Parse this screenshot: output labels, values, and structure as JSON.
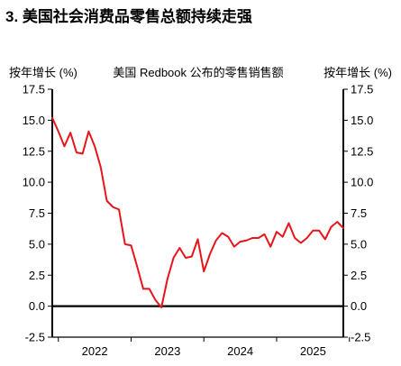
{
  "figure": {
    "title": "3. 美国社会消费品零售总额持续走强"
  },
  "chart_data": {
    "type": "line",
    "title": "美国 Redbook 公布的零售销售额",
    "ylabel_left": "按年增长 (%)",
    "ylabel_right": "按年增长 (%)",
    "ylim": [
      -2.5,
      17.5
    ],
    "yticks": [
      "17.5",
      "15.0",
      "12.5",
      "10.0",
      "7.5",
      "5.0",
      "2.5",
      "0.0",
      "-2.5"
    ],
    "xlim": [
      "2021-12",
      "2025-12"
    ],
    "xtick_labels": [
      "2022",
      "2023",
      "2024",
      "2025"
    ],
    "grid": false,
    "series": [
      {
        "color": "#e8141b",
        "points": [
          [
            "2021-12",
            15.2
          ],
          [
            "2022-01",
            14.1
          ],
          [
            "2022-02",
            12.9
          ],
          [
            "2022-03",
            14.0
          ],
          [
            "2022-04",
            12.4
          ],
          [
            "2022-05",
            12.3
          ],
          [
            "2022-06",
            14.1
          ],
          [
            "2022-07",
            12.9
          ],
          [
            "2022-08",
            11.2
          ],
          [
            "2022-09",
            8.5
          ],
          [
            "2022-10",
            8.0
          ],
          [
            "2022-11",
            7.8
          ],
          [
            "2022-12",
            5.0
          ],
          [
            "2023-01",
            4.9
          ],
          [
            "2023-02",
            3.2
          ],
          [
            "2023-03",
            1.4
          ],
          [
            "2023-04",
            1.4
          ],
          [
            "2023-05",
            0.5
          ],
          [
            "2023-06",
            -0.1
          ],
          [
            "2023-07",
            2.2
          ],
          [
            "2023-08",
            3.9
          ],
          [
            "2023-09",
            4.7
          ],
          [
            "2023-10",
            3.9
          ],
          [
            "2023-11",
            4.0
          ],
          [
            "2023-12",
            5.4
          ],
          [
            "2024-01",
            2.8
          ],
          [
            "2024-02",
            4.2
          ],
          [
            "2024-03",
            5.3
          ],
          [
            "2024-04",
            5.9
          ],
          [
            "2024-05",
            5.6
          ],
          [
            "2024-06",
            4.8
          ],
          [
            "2024-07",
            5.2
          ],
          [
            "2024-08",
            5.3
          ],
          [
            "2024-09",
            5.5
          ],
          [
            "2024-10",
            5.5
          ],
          [
            "2024-11",
            5.8
          ],
          [
            "2024-12",
            4.8
          ],
          [
            "2025-01",
            6.0
          ],
          [
            "2025-02",
            5.6
          ],
          [
            "2025-03",
            6.7
          ],
          [
            "2025-04",
            5.5
          ],
          [
            "2025-05",
            5.1
          ],
          [
            "2025-06",
            5.5
          ],
          [
            "2025-07",
            6.1
          ],
          [
            "2025-08",
            6.1
          ],
          [
            "2025-09",
            5.4
          ],
          [
            "2025-10",
            6.4
          ],
          [
            "2025-11",
            6.8
          ],
          [
            "2025-12",
            6.3
          ]
        ]
      }
    ]
  }
}
